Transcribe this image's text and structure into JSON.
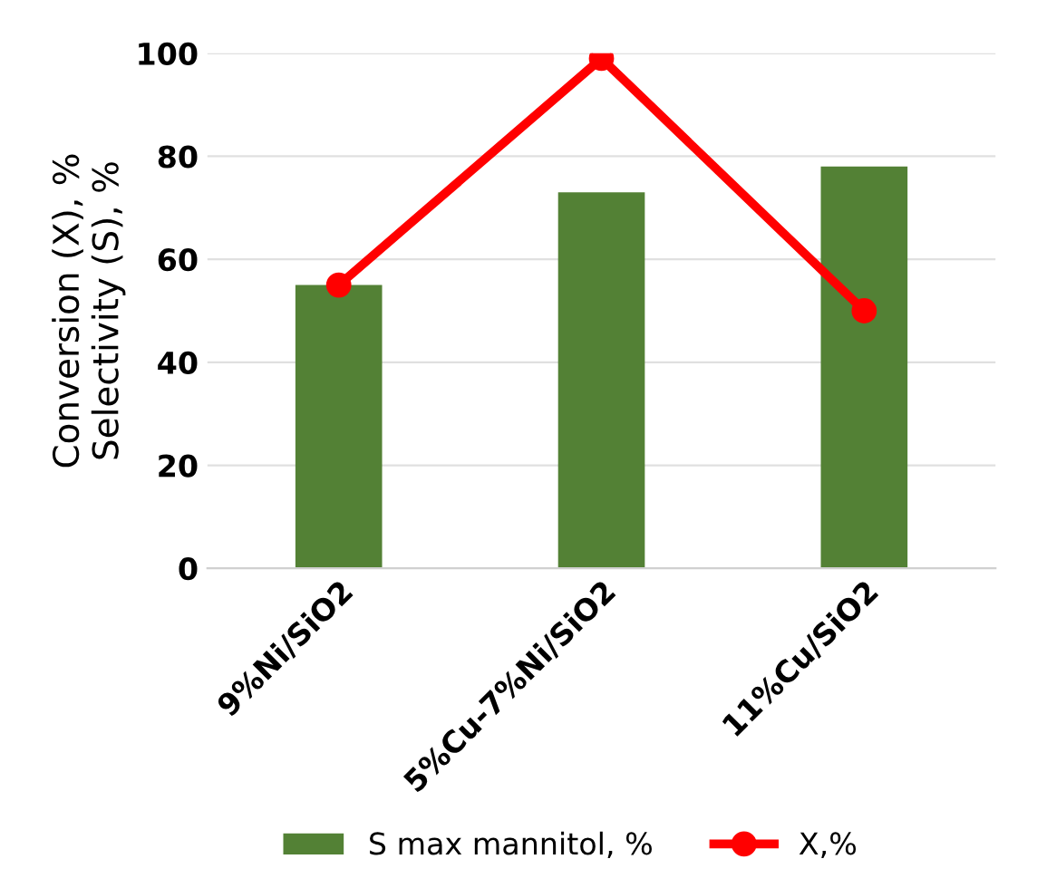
{
  "chart_data": {
    "type": "bar",
    "ylabel": "Conversion (X), %\nSelectivity (S), %",
    "categories": [
      "9%Ni/SiO2",
      "5%Cu-7%Ni/SiO2",
      "11%Cu/SiO2"
    ],
    "series": [
      {
        "name": "S max mannitol, %",
        "color": "#538135",
        "values": [
          55,
          73,
          78
        ]
      },
      {
        "name": "X,%",
        "type": "line",
        "color": "#ff0000",
        "values": [
          55,
          99,
          50
        ],
        "marker": "circle",
        "line_style": "solid"
      }
    ],
    "ylim": [
      0,
      100
    ],
    "yticks": [
      0,
      20,
      40,
      60,
      80,
      100
    ],
    "grid": "y",
    "legend": "bottom"
  }
}
